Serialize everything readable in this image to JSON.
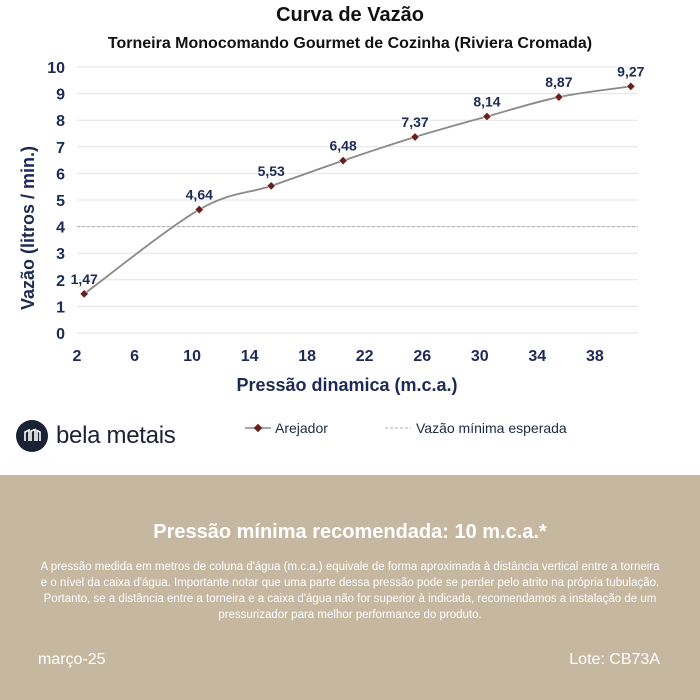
{
  "chart_data": {
    "type": "line",
    "title": "Curva de Vazão",
    "subtitle": "Torneira Monocomando Gourmet de Cozinha (Riviera Cromada)",
    "xlabel": "Pressão dinamica (m.c.a.)",
    "ylabel": "Vazão (litros / min.)",
    "xlim": [
      2,
      41
    ],
    "ylim": [
      0,
      10
    ],
    "xticks": [
      "2",
      "6",
      "10",
      "14",
      "18",
      "22",
      "26",
      "30",
      "34",
      "38"
    ],
    "yticks": [
      "0",
      "1",
      "2",
      "3",
      "4",
      "5",
      "6",
      "7",
      "8",
      "9",
      "10"
    ],
    "grid": "horizontal",
    "legend_position": "bottom",
    "series": [
      {
        "name": "Arejador",
        "color": "#8a8a8a",
        "marker_color": "#6b1f1f",
        "x": [
          2.5,
          10.5,
          15.5,
          20.5,
          25.5,
          30.5,
          35.5,
          40.5
        ],
        "y": [
          1.47,
          4.64,
          5.53,
          6.48,
          7.37,
          8.14,
          8.87,
          9.27
        ],
        "labels": [
          "1,47",
          "4,64",
          "5,53",
          "6,48",
          "7,37",
          "8,14",
          "8,87",
          "9,27"
        ]
      },
      {
        "name": "Vazão mínima esperada",
        "color": "#b0b0b0",
        "style": "dashed",
        "value": 4
      }
    ]
  },
  "brand": {
    "name": "bela metais",
    "logo_icon": "bela-metais-logo-icon"
  },
  "info": {
    "headline": "Pressão mínima recomendada: 10 m.c.a.*",
    "body": "A pressão medida em metros de coluna d'água (m.c.a.) equivale de forma aproximada à distância vertical entre a torneira e o nível da caixa d'água. Importante notar que uma parte dessa pressão pode se perder pelo atrito na própria tubulação. Portanto, se a distância entre a torneira e a caixa d'água não for superior à indicada, recomendamos a instalação de um pressurizador para melhor performance do produto.",
    "date": "março-25",
    "lot": "Lote: CB73A",
    "panel_color": "#c6b7a0"
  }
}
